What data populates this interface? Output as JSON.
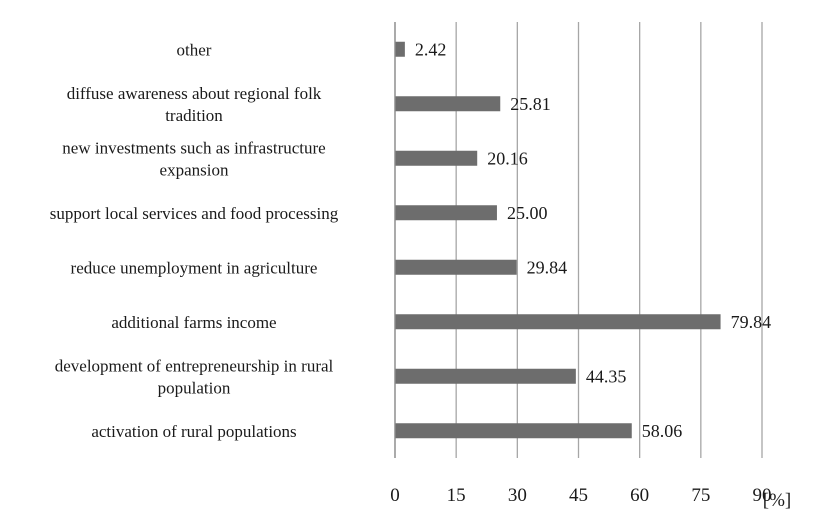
{
  "chart_data": {
    "type": "bar",
    "orientation": "horizontal",
    "categories": [
      "other",
      "diffuse awareness about regional folk tradition",
      "new investments such as infrastructure expansion",
      "support local services and food processing",
      "reduce unemployment in agriculture",
      "additional farms income",
      "development of entrepreneurship in rural population",
      "activation of rural populations"
    ],
    "category_lines": [
      [
        "other"
      ],
      [
        "diffuse awareness about regional folk",
        "tradition"
      ],
      [
        "new investments such as infrastructure",
        "expansion"
      ],
      [
        "support local services and food processing"
      ],
      [
        "reduce unemployment in agriculture"
      ],
      [
        "additional farms income"
      ],
      [
        "development of entrepreneurship in rural",
        "population"
      ],
      [
        "activation of rural populations"
      ]
    ],
    "values": [
      2.42,
      25.81,
      20.16,
      25.0,
      29.84,
      79.84,
      44.35,
      58.06
    ],
    "value_labels": [
      "2.42",
      "25.81",
      "20.16",
      "25.00",
      "29.84",
      "79.84",
      "44.35",
      "58.06"
    ],
    "xlim": [
      0,
      90
    ],
    "xticks": [
      "0",
      "15",
      "30",
      "45",
      "60",
      "75",
      "90"
    ],
    "unit_label": "[%]",
    "grid": "vertical",
    "bar_color": "#6d6d6d",
    "grid_color": "#a6a6a6"
  }
}
